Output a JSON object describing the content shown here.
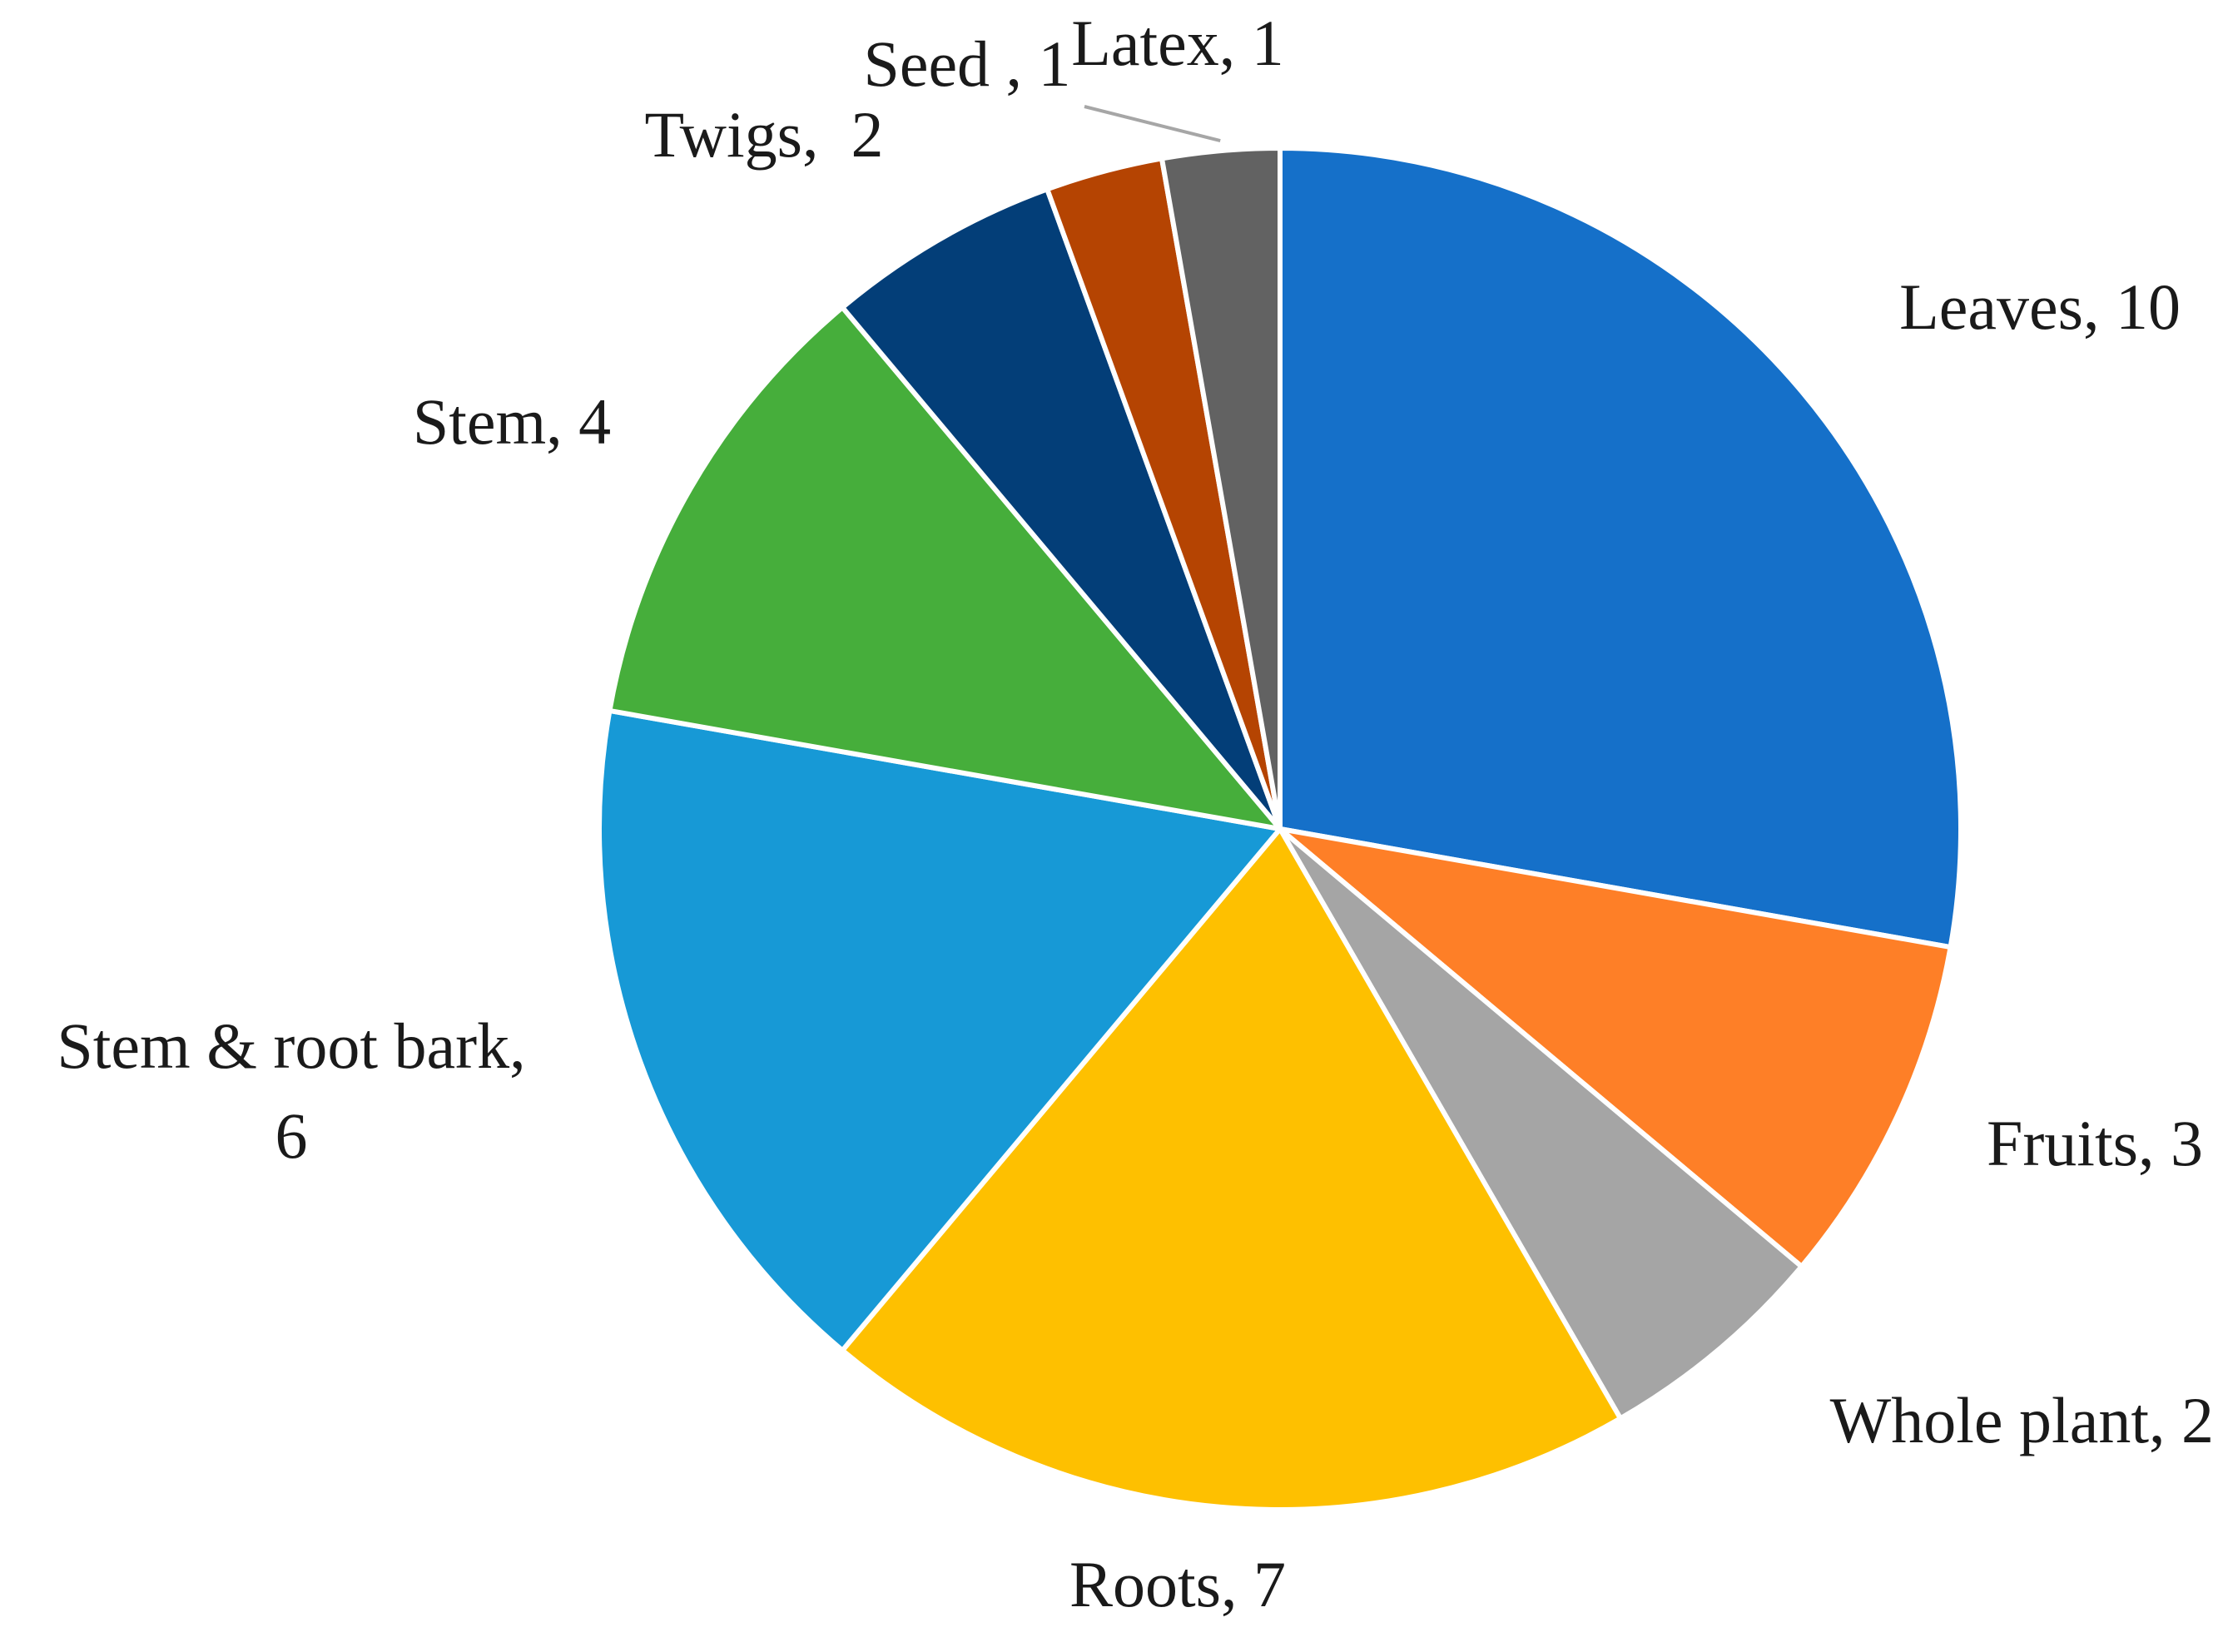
{
  "chart_data": {
    "type": "pie",
    "start_angle_deg": 0,
    "direction": "clockwise",
    "legend": "none",
    "slices": [
      {
        "label": "Leaves",
        "value": 10,
        "display": "Leaves, 10",
        "color": "#1570c9"
      },
      {
        "label": "Fruits",
        "value": 3,
        "display": "Fruits, 3",
        "color": "#fe7f27"
      },
      {
        "label": "Whole plant",
        "value": 2,
        "display": "Whole plant, 2",
        "color": "#a5a5a5"
      },
      {
        "label": "Roots",
        "value": 7,
        "display": "Roots, 7",
        "color": "#fec000"
      },
      {
        "label": "Stem & root bark",
        "value": 6,
        "display": "Stem & root bark,|6",
        "color": "#1799d6"
      },
      {
        "label": "Stem",
        "value": 4,
        "display": "Stem, 4",
        "color": "#46ae3b"
      },
      {
        "label": "Twigs",
        "value": 2,
        "display": "Twigs,  2",
        "color": "#033e78"
      },
      {
        "label": "Seed",
        "value": 1,
        "display": "Seed , 1",
        "color": "#b54402"
      },
      {
        "label": "Latex",
        "value": 1,
        "display": "Latex, 1",
        "color": "#626262"
      }
    ]
  }
}
